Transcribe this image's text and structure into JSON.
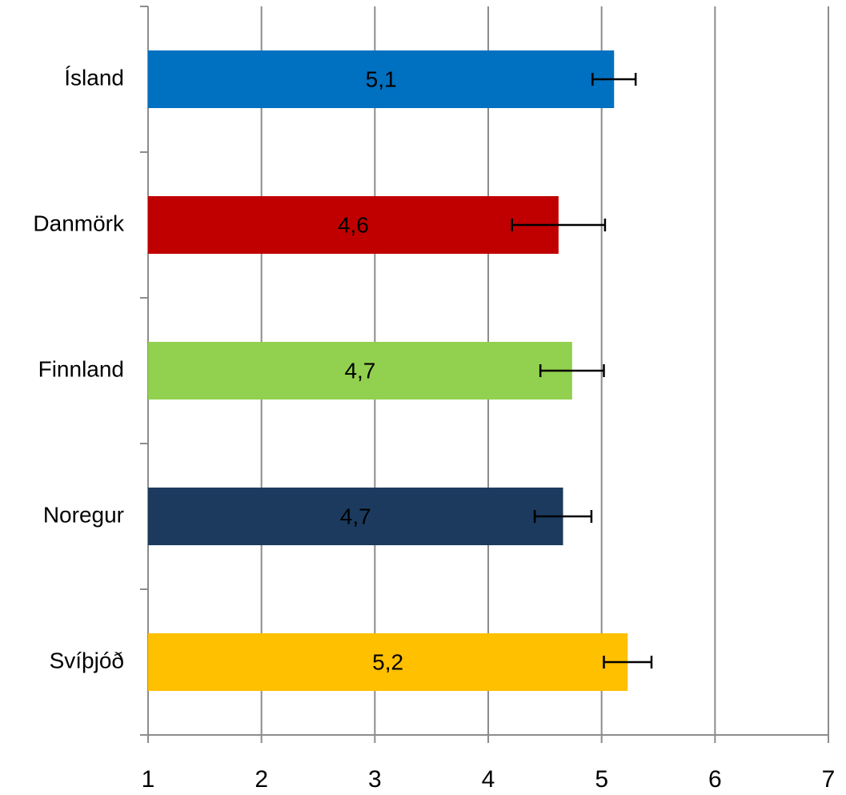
{
  "chart_data": {
    "type": "bar",
    "orientation": "horizontal",
    "categories": [
      "Ísland",
      "Danmörk",
      "Finnland",
      "Noregur",
      "Svíþjóð"
    ],
    "values": [
      5.11,
      4.62,
      4.74,
      4.66,
      5.23
    ],
    "value_labels": [
      "5,1",
      "4,6",
      "4,7",
      "4,7",
      "5,2"
    ],
    "errors": [
      0.19,
      0.41,
      0.28,
      0.25,
      0.21
    ],
    "colors": [
      "#0070c0",
      "#c00000",
      "#92d050",
      "#1b3a5e",
      "#ffc000"
    ],
    "xlim": [
      1,
      7
    ],
    "xticks": [
      1,
      2,
      3,
      4,
      5,
      6,
      7
    ],
    "grid": true
  }
}
